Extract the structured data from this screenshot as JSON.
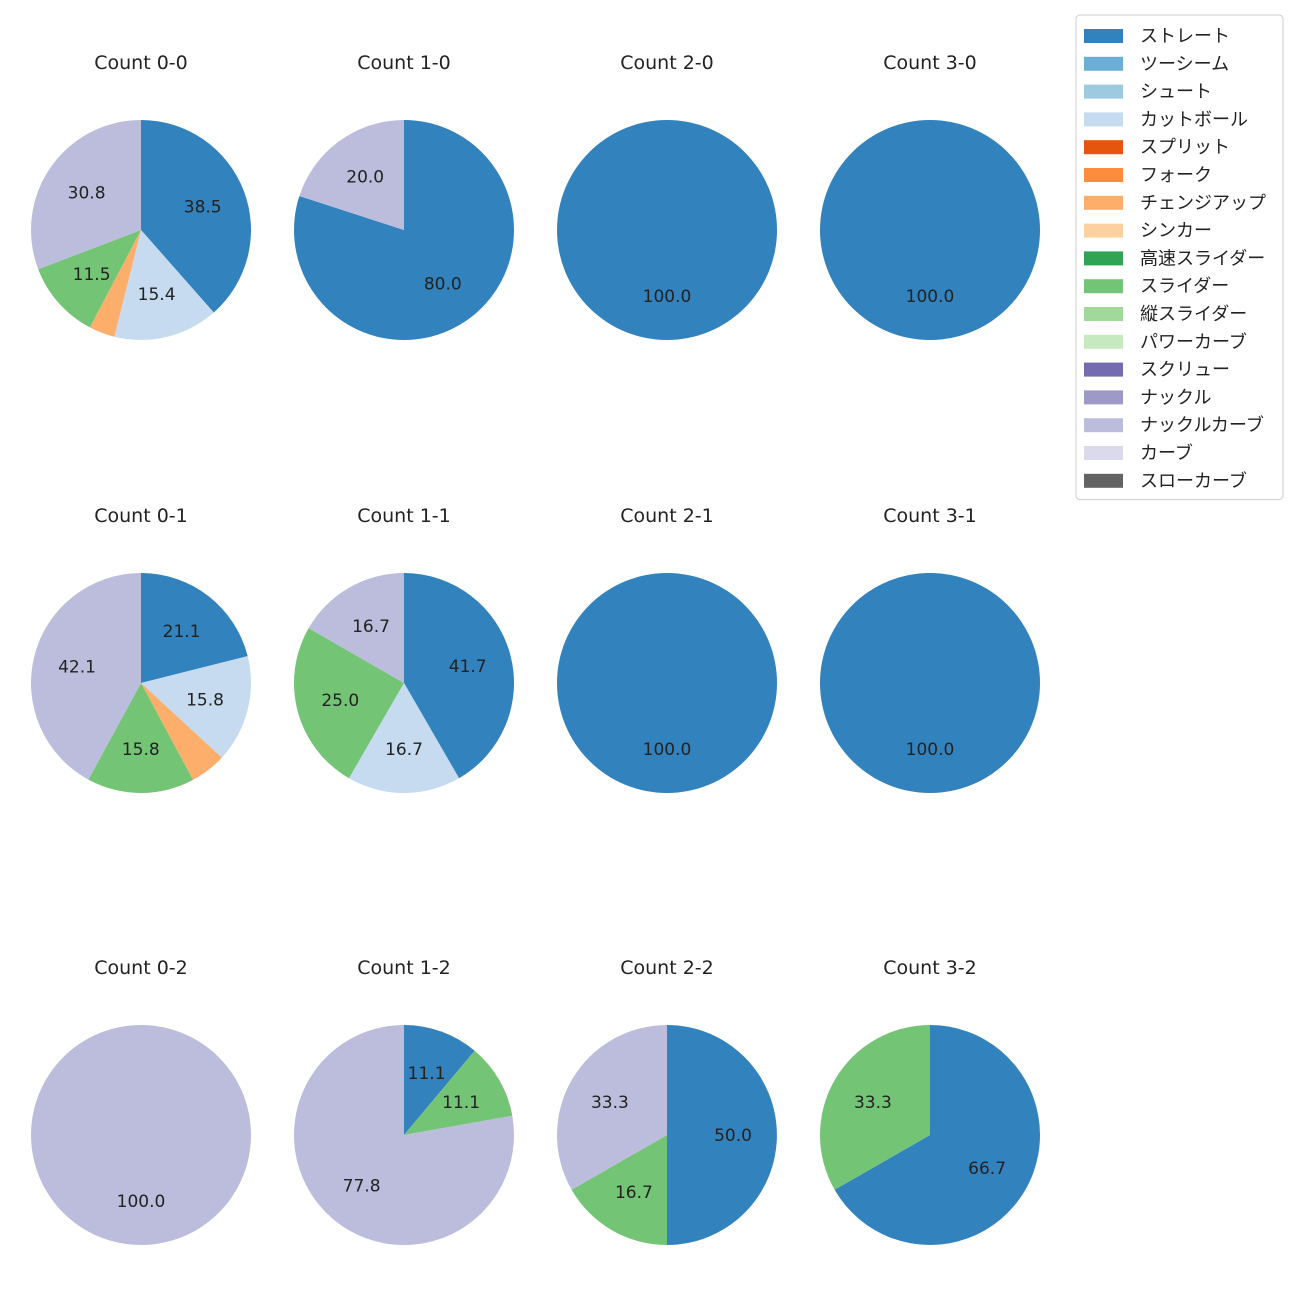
{
  "chart_data": {
    "type": "pie",
    "title": "",
    "legend": {
      "placement": "top-right",
      "entries": [
        {
          "name": "ストレート",
          "color": "#3182bd"
        },
        {
          "name": "ツーシーム",
          "color": "#6baed6"
        },
        {
          "name": "シュート",
          "color": "#9ecae1"
        },
        {
          "name": "カットボール",
          "color": "#c6dbef"
        },
        {
          "name": "スプリット",
          "color": "#e6550d"
        },
        {
          "name": "フォーク",
          "color": "#fd8d3c"
        },
        {
          "name": "チェンジアップ",
          "color": "#fdae6b"
        },
        {
          "name": "シンカー",
          "color": "#fdd0a2"
        },
        {
          "name": "高速スライダー",
          "color": "#31a354"
        },
        {
          "name": "スライダー",
          "color": "#74c476"
        },
        {
          "name": "縦スライダー",
          "color": "#a1d99b"
        },
        {
          "name": "パワーカーブ",
          "color": "#c7e9c0"
        },
        {
          "name": "スクリュー",
          "color": "#756bb1"
        },
        {
          "name": "ナックル",
          "color": "#9e9ac8"
        },
        {
          "name": "ナックルカーブ",
          "color": "#bcbddc"
        },
        {
          "name": "カーブ",
          "color": "#dadaeb"
        },
        {
          "name": "スローカーブ",
          "color": "#636363"
        }
      ]
    },
    "pies": [
      {
        "title": "Count 0-0",
        "slices": [
          {
            "pitch": "ストレート",
            "value": 38.5,
            "label": "38.5"
          },
          {
            "pitch": "カットボール",
            "value": 15.4,
            "label": "15.4"
          },
          {
            "pitch": "チェンジアップ",
            "value": 3.8,
            "label": ""
          },
          {
            "pitch": "スライダー",
            "value": 11.5,
            "label": "11.5"
          },
          {
            "pitch": "ナックルカーブ",
            "value": 30.8,
            "label": "30.8"
          }
        ]
      },
      {
        "title": "Count 1-0",
        "slices": [
          {
            "pitch": "ストレート",
            "value": 80.0,
            "label": "80.0"
          },
          {
            "pitch": "ナックルカーブ",
            "value": 20.0,
            "label": "20.0"
          }
        ]
      },
      {
        "title": "Count 2-0",
        "slices": [
          {
            "pitch": "ストレート",
            "value": 100.0,
            "label": "100.0"
          }
        ]
      },
      {
        "title": "Count 3-0",
        "slices": [
          {
            "pitch": "ストレート",
            "value": 100.0,
            "label": "100.0"
          }
        ]
      },
      {
        "title": "Count 0-1",
        "slices": [
          {
            "pitch": "ストレート",
            "value": 21.1,
            "label": "21.1"
          },
          {
            "pitch": "カットボール",
            "value": 15.8,
            "label": "15.8"
          },
          {
            "pitch": "チェンジアップ",
            "value": 5.3,
            "label": ""
          },
          {
            "pitch": "スライダー",
            "value": 15.8,
            "label": "15.8"
          },
          {
            "pitch": "ナックルカーブ",
            "value": 42.1,
            "label": "42.1"
          }
        ]
      },
      {
        "title": "Count 1-1",
        "slices": [
          {
            "pitch": "ストレート",
            "value": 41.7,
            "label": "41.7"
          },
          {
            "pitch": "カットボール",
            "value": 16.7,
            "label": "16.7"
          },
          {
            "pitch": "スライダー",
            "value": 25.0,
            "label": "25.0"
          },
          {
            "pitch": "ナックルカーブ",
            "value": 16.7,
            "label": "16.7"
          }
        ]
      },
      {
        "title": "Count 2-1",
        "slices": [
          {
            "pitch": "ストレート",
            "value": 100.0,
            "label": "100.0"
          }
        ]
      },
      {
        "title": "Count 3-1",
        "slices": [
          {
            "pitch": "ストレート",
            "value": 100.0,
            "label": "100.0"
          }
        ]
      },
      {
        "title": "Count 0-2",
        "slices": [
          {
            "pitch": "ナックルカーブ",
            "value": 100.0,
            "label": "100.0"
          }
        ]
      },
      {
        "title": "Count 1-2",
        "slices": [
          {
            "pitch": "ストレート",
            "value": 11.1,
            "label": "11.1"
          },
          {
            "pitch": "スライダー",
            "value": 11.1,
            "label": "11.1"
          },
          {
            "pitch": "ナックルカーブ",
            "value": 77.8,
            "label": "77.8"
          }
        ]
      },
      {
        "title": "Count 2-2",
        "slices": [
          {
            "pitch": "ストレート",
            "value": 50.0,
            "label": "50.0"
          },
          {
            "pitch": "スライダー",
            "value": 16.7,
            "label": "16.7"
          },
          {
            "pitch": "ナックルカーブ",
            "value": 33.3,
            "label": "33.3"
          }
        ]
      },
      {
        "title": "Count 3-2",
        "slices": [
          {
            "pitch": "ストレート",
            "value": 66.7,
            "label": "66.7"
          },
          {
            "pitch": "スライダー",
            "value": 33.3,
            "label": "33.3"
          }
        ]
      }
    ]
  }
}
